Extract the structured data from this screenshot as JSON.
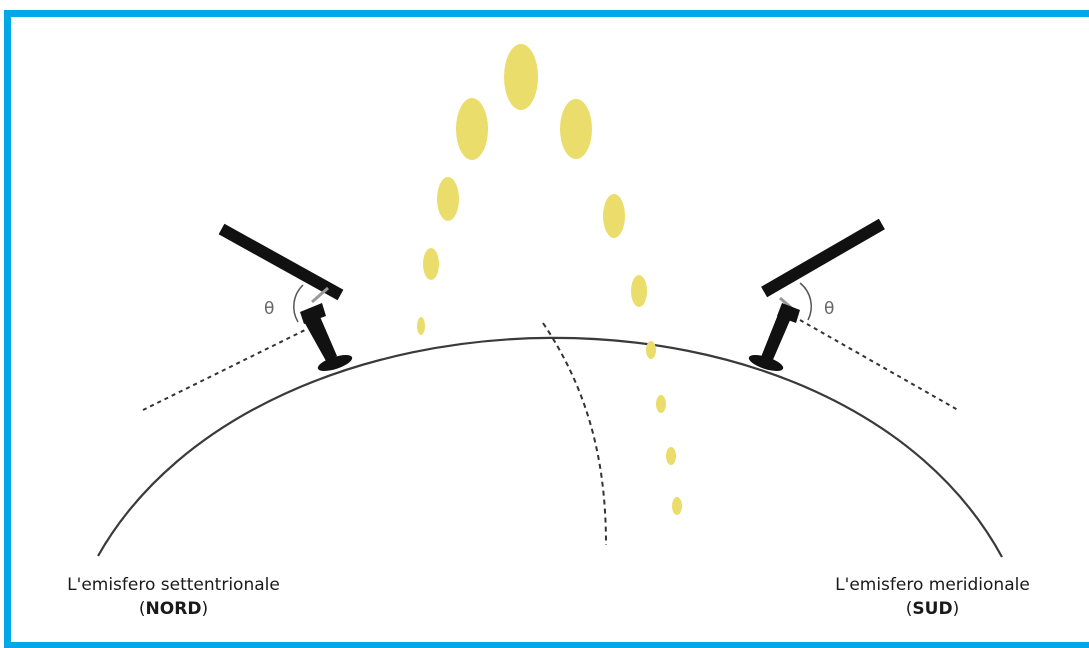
{
  "colors": {
    "border": "#00a8e8",
    "sun": "#ebdd6b",
    "earth": "#3a3a3a",
    "panel": "#111111"
  },
  "angle_symbol": "θ",
  "north": {
    "label": "L'emisfero settentrionale",
    "code": "NORD"
  },
  "south": {
    "label": "L'emisfero meridionale",
    "code": "SUD"
  },
  "icons": [
    "sun-path-icon",
    "solar-panel-icon",
    "earth-surface-icon"
  ]
}
